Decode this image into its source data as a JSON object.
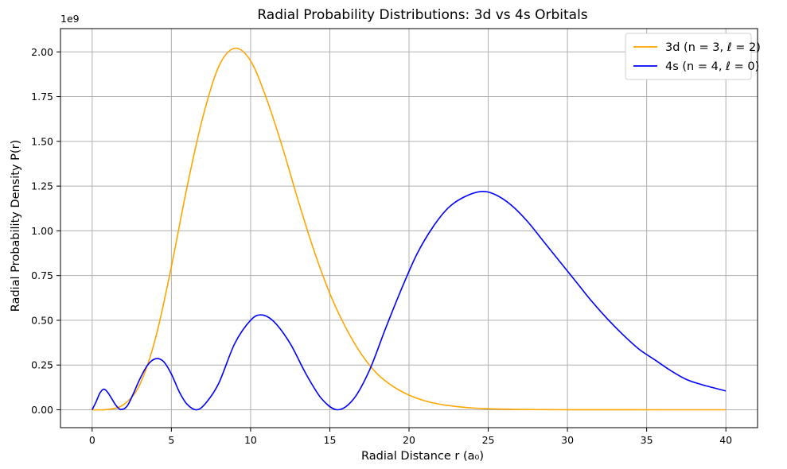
{
  "chart_data": {
    "type": "line",
    "title": "Radial Probability Distributions: 3d vs 4s Orbitals",
    "xlabel": "Radial Distance r (a₀)",
    "ylabel": "Radial Probability Density P(r)",
    "y_multiplier": "1e9",
    "xlim": [
      -2,
      42
    ],
    "ylim": [
      -0.1,
      2.13
    ],
    "x_ticks": [
      0,
      5,
      10,
      15,
      20,
      25,
      30,
      35,
      40
    ],
    "x_tick_labels": [
      "0",
      "5",
      "10",
      "15",
      "20",
      "25",
      "30",
      "35",
      "40"
    ],
    "y_ticks": [
      0,
      0.25,
      0.5,
      0.75,
      1.0,
      1.25,
      1.5,
      1.75,
      2.0
    ],
    "y_tick_labels": [
      "0.00",
      "0.25",
      "0.50",
      "0.75",
      "1.00",
      "1.25",
      "1.50",
      "1.75",
      "2.00"
    ],
    "grid": true,
    "legend_position": "top-right",
    "series": [
      {
        "name": "3d (n = 3, ℓ = 2)",
        "color": "#FFA500",
        "x": [
          0,
          1,
          2,
          3,
          4,
          5,
          6,
          7,
          8,
          9,
          10,
          11,
          12,
          13,
          14,
          15,
          16,
          17,
          18,
          19,
          20,
          21,
          22,
          23,
          24,
          25,
          26,
          27,
          28,
          29,
          30,
          32,
          34,
          36,
          38,
          40
        ],
        "y": [
          0,
          0.002,
          0.03,
          0.14,
          0.4,
          0.8,
          1.25,
          1.64,
          1.92,
          2.02,
          1.95,
          1.74,
          1.47,
          1.17,
          0.89,
          0.65,
          0.46,
          0.31,
          0.2,
          0.13,
          0.082,
          0.05,
          0.03,
          0.018,
          0.01,
          0.006,
          0.0035,
          0.002,
          0.001,
          0.0006,
          0.0003,
          0.0001,
          3e-05,
          1e-05,
          0,
          0
        ]
      },
      {
        "name": "4s (n = 4, ℓ = 0)",
        "color": "#0000FF",
        "x": [
          0,
          0.25,
          0.5,
          0.75,
          1.0,
          1.25,
          1.5,
          1.8,
          2.2,
          2.6,
          3.0,
          3.5,
          4.0,
          4.5,
          5.0,
          5.5,
          6.0,
          6.6,
          7.2,
          8.0,
          9.0,
          10.0,
          10.7,
          11.5,
          12.5,
          13.5,
          14.5,
          15.5,
          16.5,
          17.5,
          18.5,
          19.5,
          20.5,
          21.5,
          22.5,
          23.5,
          24.6,
          25.5,
          26.5,
          27.5,
          28.5,
          29.5,
          30.5,
          31.5,
          32.5,
          33.5,
          34.5,
          35.5,
          36.5,
          37.5,
          38.5,
          40.0
        ],
        "y": [
          0,
          0.045,
          0.095,
          0.115,
          0.095,
          0.06,
          0.025,
          0.002,
          0.02,
          0.09,
          0.17,
          0.25,
          0.285,
          0.27,
          0.2,
          0.1,
          0.03,
          0,
          0.04,
          0.15,
          0.37,
          0.5,
          0.53,
          0.49,
          0.37,
          0.2,
          0.06,
          0,
          0.06,
          0.22,
          0.45,
          0.67,
          0.87,
          1.02,
          1.13,
          1.19,
          1.22,
          1.2,
          1.14,
          1.05,
          0.94,
          0.83,
          0.72,
          0.61,
          0.51,
          0.42,
          0.34,
          0.28,
          0.22,
          0.17,
          0.14,
          0.105
        ]
      }
    ]
  }
}
